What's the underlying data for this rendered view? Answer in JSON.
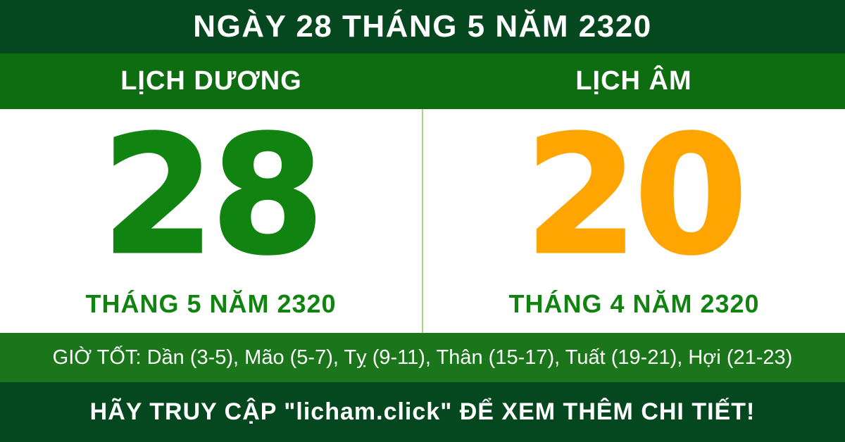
{
  "header": {
    "title": "NGÀY 28 THÁNG 5 NĂM 2320"
  },
  "calendar": {
    "solar": {
      "label": "LỊCH DƯƠNG",
      "day": "28",
      "month_year": "THÁNG 5 NĂM 2320",
      "day_color": "#118311"
    },
    "lunar": {
      "label": "LỊCH ÂM",
      "day": "20",
      "month_year": "THÁNG 4 NĂM 2320",
      "day_color": "#ffa502"
    }
  },
  "good_hours": {
    "text": "GIỜ TỐT: Dần (3-5), Mão (5-7), Tỵ (9-11), Thân (15-17), Tuất (19-21), Hợi (21-23)"
  },
  "footer": {
    "text": "HÃY TRUY CẬP \"licham.click\" ĐỂ XEM THÊM CHI TIẾT!"
  },
  "colors": {
    "dark_green": "#05481f",
    "band_green": "#0f6d11",
    "hours_band_green": "#1b751b",
    "number_green": "#118311",
    "number_orange": "#ffa502",
    "divider_light_green": "#a9d489",
    "text_white": "#ffffff"
  }
}
